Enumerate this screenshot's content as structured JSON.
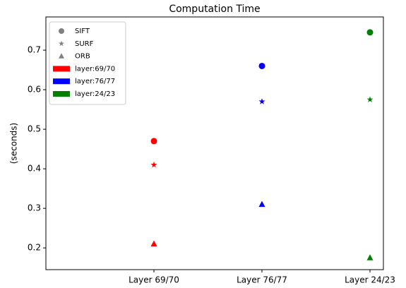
{
  "chart_data": {
    "type": "scatter",
    "title": "Computation Time",
    "y_label": "(seconds)",
    "categories": [
      "Layer 69/70",
      "Layer 76/77",
      "Layer 24/23"
    ],
    "category_colors": [
      "red",
      "blue",
      "green"
    ],
    "series": [
      {
        "name": "SIFT",
        "marker": "circle",
        "color": "gray",
        "values": [
          0.47,
          0.66,
          0.745
        ]
      },
      {
        "name": "SURF",
        "marker": "star",
        "color": "gray",
        "values": [
          0.41,
          0.57,
          0.575
        ]
      },
      {
        "name": "ORB",
        "marker": "triangle",
        "color": "gray",
        "values": [
          0.21,
          0.31,
          0.175
        ]
      }
    ],
    "color_legend": [
      {
        "label": "layer:69/70",
        "color": "red"
      },
      {
        "label": "layer:76/77",
        "color": "blue"
      },
      {
        "label": "layer:24/23",
        "color": "green"
      }
    ],
    "ylim": [
      0.145,
      0.784
    ],
    "yticks": [
      0.2,
      0.3,
      0.4,
      0.5,
      0.6,
      0.7
    ],
    "legend_position": "upper left"
  }
}
